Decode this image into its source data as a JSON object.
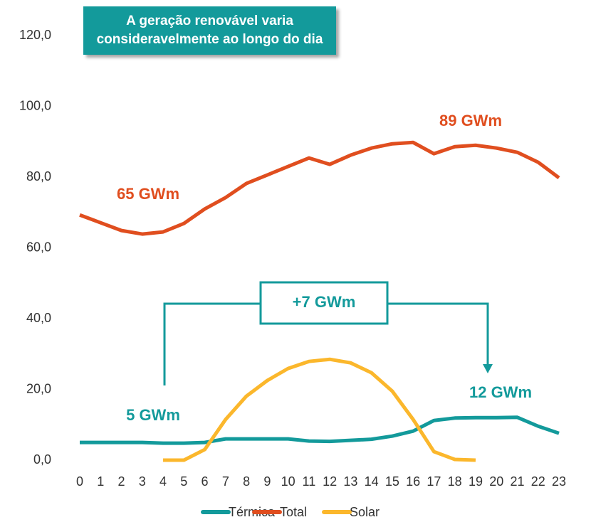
{
  "chart_data": {
    "type": "line",
    "title": "A geração renovável varia consideravelmente ao longo do dia",
    "categories": [
      "0",
      "1",
      "2",
      "3",
      "4",
      "5",
      "6",
      "7",
      "8",
      "9",
      "10",
      "11",
      "12",
      "13",
      "14",
      "15",
      "16",
      "17",
      "18",
      "19",
      "20",
      "21",
      "22",
      "23"
    ],
    "series": [
      {
        "name": "Térmica",
        "color": "#139a9b",
        "values": [
          5.0,
          5.0,
          5.0,
          5.0,
          4.8,
          4.8,
          5.0,
          6.0,
          6.0,
          6.0,
          6.0,
          5.4,
          5.3,
          5.6,
          5.9,
          6.8,
          8.2,
          11.2,
          11.9,
          12.0,
          12.0,
          12.1,
          9.6,
          7.6
        ]
      },
      {
        "name": "Total",
        "color": "#e04e1f",
        "values": [
          69.3,
          67.1,
          64.9,
          63.9,
          64.5,
          66.9,
          71.0,
          74.2,
          78.2,
          80.6,
          83.0,
          85.4,
          83.6,
          86.2,
          88.2,
          89.4,
          89.8,
          86.6,
          88.6,
          89.0,
          88.2,
          87.0,
          84.2,
          79.8
        ]
      },
      {
        "name": "Solar",
        "color": "#fbb72c",
        "values": [
          null,
          null,
          null,
          null,
          0,
          0,
          3.0,
          11.5,
          18.1,
          22.5,
          25.9,
          27.9,
          28.5,
          27.5,
          24.7,
          19.5,
          11.5,
          2.4,
          0.2,
          0,
          null,
          null,
          null,
          null
        ]
      }
    ],
    "ylim": [
      0,
      120
    ],
    "yticks": [
      {
        "value": 0,
        "label": "0,0"
      },
      {
        "value": 20,
        "label": "20,0"
      },
      {
        "value": 40,
        "label": "40,0"
      },
      {
        "value": 60,
        "label": "60,0"
      },
      {
        "value": 80,
        "label": "80,0"
      },
      {
        "value": 100,
        "label": "100,0"
      },
      {
        "value": 120,
        "label": "120,0"
      }
    ],
    "grid": false,
    "legend": "bottom",
    "annotations": [
      "65 GWm",
      "89 GWm",
      "5 GWm",
      "12 GWm",
      "+7 GWm"
    ]
  }
}
